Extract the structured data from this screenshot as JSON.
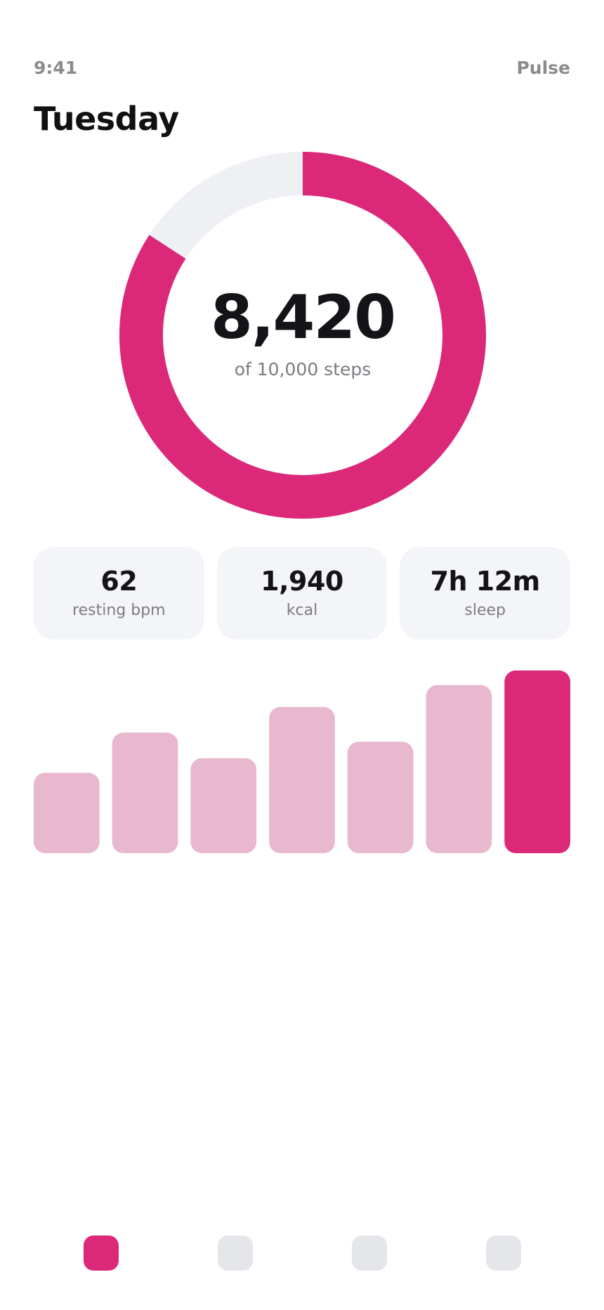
{
  "status_bar": {
    "time": "9:41",
    "app_name": "Pulse"
  },
  "page_title": "Tuesday",
  "steps_ring": {
    "value": "8,420",
    "goal_label": "of 10,000 steps",
    "progress_fraction": 0.842,
    "progress_color": "#dc2878",
    "track_color": "#eff0f4"
  },
  "stats": [
    {
      "value": "62",
      "label": "resting bpm"
    },
    {
      "value": "1,940",
      "label": "kcal"
    },
    {
      "value": "7h 12m",
      "label": "sleep"
    }
  ],
  "chart_data": {
    "type": "bar",
    "values": [
      0.44,
      0.66,
      0.52,
      0.8,
      0.61,
      0.92,
      1.0
    ],
    "highlight_index": 6,
    "highlight_color": "#dc2878",
    "bar_color": "#e8b8cf",
    "ylim": [
      0,
      1
    ]
  },
  "bottom_nav": {
    "tabs": [
      {
        "icon": "tab-1-icon",
        "active": true
      },
      {
        "icon": "tab-2-icon",
        "active": false
      },
      {
        "icon": "tab-3-icon",
        "active": false
      },
      {
        "icon": "tab-4-icon",
        "active": false
      }
    ]
  }
}
